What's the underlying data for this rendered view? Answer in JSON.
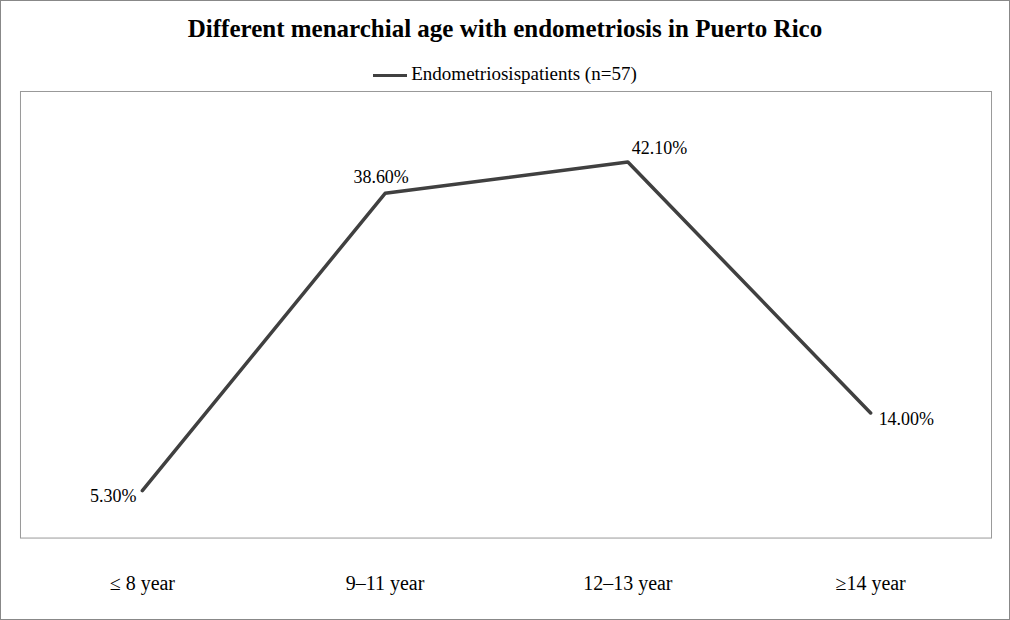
{
  "chart_data": {
    "type": "line",
    "title": "Different menarchial age with endometriosis in Puerto Rico",
    "categories": [
      "≤ 8 year",
      "9–11 year",
      "12–13 year",
      "≥14 year"
    ],
    "series": [
      {
        "name": "Endometriosispatients (n=57)",
        "color": "#404040",
        "values": [
          5.3,
          38.6,
          42.1,
          14.0
        ],
        "value_labels": [
          "5.30%",
          "38.60%",
          "42.10%",
          "14.00%"
        ]
      }
    ],
    "ylim": [
      0,
      50
    ],
    "yticks": [],
    "legend": "top",
    "data_labels": true,
    "tick_labels": "x",
    "grid": false
  }
}
